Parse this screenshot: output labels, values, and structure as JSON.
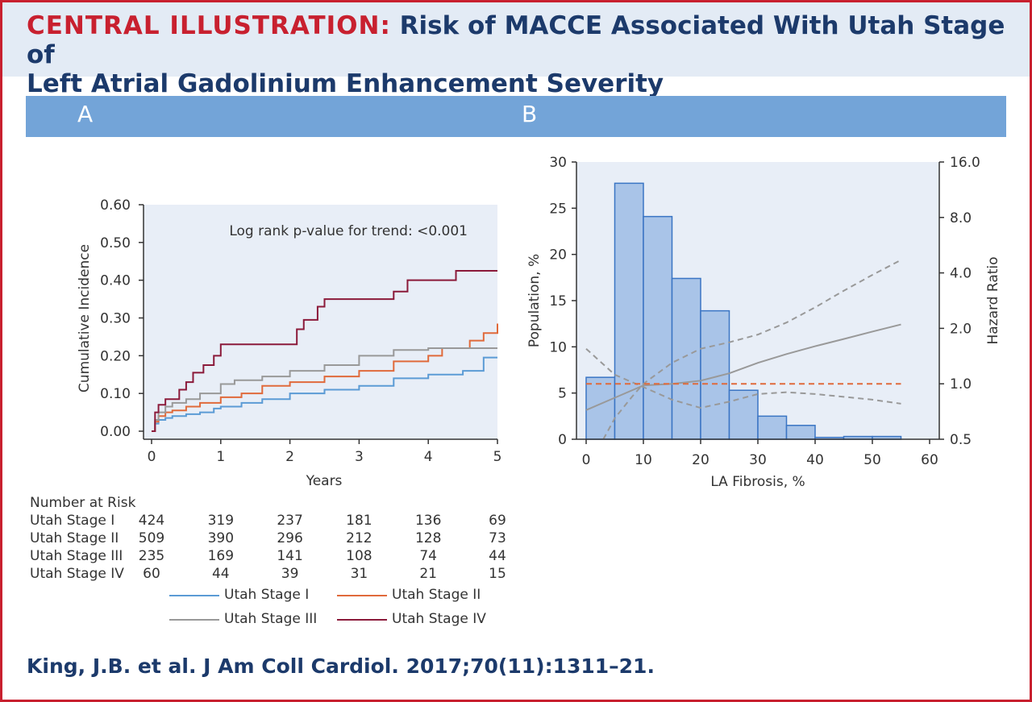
{
  "header": {
    "label": "CENTRAL ILLUSTRATION:",
    "title_line1": "Risk of MACCE Associated With Utah Stage of",
    "title_line2": "Left Atrial Gadolinium Enhancement Severity"
  },
  "panels": {
    "a_label": "A",
    "b_label": "B"
  },
  "citation": "King, J.B. et al. J Am Coll Cardiol. 2017;70(11):1311–21.",
  "chart_data": [
    {
      "type": "line",
      "panel": "A",
      "annotation": "Log rank p-value for trend: <0.001",
      "xlabel": "Years",
      "ylabel": "Cumulative Incidence",
      "xlim": [
        0,
        5
      ],
      "ylim": [
        0,
        0.6
      ],
      "x_ticks": [
        "0",
        "1",
        "2",
        "3",
        "4",
        "5"
      ],
      "y_ticks": [
        "0.00",
        "0.10",
        "0.20",
        "0.30",
        "0.40",
        "0.50",
        "0.60"
      ],
      "step": true,
      "series": [
        {
          "name": "Utah Stage I",
          "color": "#5b9bd5",
          "x": [
            0,
            0.05,
            0.1,
            0.2,
            0.3,
            0.5,
            0.7,
            0.9,
            1.0,
            1.3,
            1.6,
            2.0,
            2.5,
            3.0,
            3.5,
            4.0,
            4.5,
            4.8,
            5.0
          ],
          "y": [
            0,
            0.02,
            0.03,
            0.035,
            0.04,
            0.045,
            0.05,
            0.06,
            0.065,
            0.075,
            0.085,
            0.1,
            0.11,
            0.12,
            0.14,
            0.15,
            0.16,
            0.195,
            0.195
          ]
        },
        {
          "name": "Utah Stage II",
          "color": "#e06a3b",
          "x": [
            0,
            0.05,
            0.1,
            0.2,
            0.3,
            0.5,
            0.7,
            1.0,
            1.3,
            1.6,
            2.0,
            2.5,
            3.0,
            3.5,
            4.0,
            4.2,
            4.5,
            4.6,
            4.8,
            5.0
          ],
          "y": [
            0,
            0.025,
            0.04,
            0.05,
            0.055,
            0.065,
            0.075,
            0.09,
            0.1,
            0.12,
            0.13,
            0.145,
            0.16,
            0.185,
            0.2,
            0.22,
            0.22,
            0.24,
            0.26,
            0.285
          ]
        },
        {
          "name": "Utah Stage III",
          "color": "#999999",
          "x": [
            0,
            0.05,
            0.1,
            0.2,
            0.3,
            0.5,
            0.7,
            1.0,
            1.2,
            1.6,
            2.0,
            2.5,
            3.0,
            3.5,
            4.0,
            5.0
          ],
          "y": [
            0,
            0.03,
            0.05,
            0.065,
            0.075,
            0.085,
            0.1,
            0.125,
            0.135,
            0.145,
            0.16,
            0.175,
            0.2,
            0.215,
            0.22,
            0.22
          ]
        },
        {
          "name": "Utah Stage IV",
          "color": "#8b1a3a",
          "x": [
            0,
            0.05,
            0.1,
            0.2,
            0.4,
            0.5,
            0.6,
            0.75,
            0.9,
            1.0,
            1.5,
            2.1,
            2.2,
            2.4,
            2.5,
            3.0,
            3.5,
            3.7,
            4.0,
            4.4,
            5.0
          ],
          "y": [
            0,
            0.05,
            0.07,
            0.085,
            0.11,
            0.13,
            0.155,
            0.175,
            0.2,
            0.23,
            0.23,
            0.27,
            0.295,
            0.33,
            0.35,
            0.35,
            0.37,
            0.4,
            0.4,
            0.425,
            0.425
          ]
        }
      ],
      "number_at_risk": {
        "title": "Number at Risk",
        "rows": [
          {
            "label": "Utah Stage I",
            "values": [
              "424",
              "319",
              "237",
              "181",
              "136",
              "69"
            ]
          },
          {
            "label": "Utah Stage II",
            "values": [
              "509",
              "390",
              "296",
              "212",
              "128",
              "73"
            ]
          },
          {
            "label": "Utah Stage III",
            "values": [
              "235",
              "169",
              "141",
              "108",
              "74",
              "44"
            ]
          },
          {
            "label": "Utah Stage IV",
            "values": [
              "60",
              "44",
              "39",
              "31",
              "21",
              "15"
            ]
          }
        ]
      }
    },
    {
      "type": "bar",
      "panel": "B",
      "xlabel": "LA Fibrosis, %",
      "ylabel": "Population, %",
      "y2label": "Hazard Ratio",
      "xlim": [
        0,
        60
      ],
      "ylim": [
        0,
        30
      ],
      "y2_scale": "log",
      "y2lim": [
        0.5,
        16.0
      ],
      "x_ticks": [
        "0",
        "10",
        "20",
        "30",
        "40",
        "50",
        "60"
      ],
      "y_ticks": [
        "0",
        "5",
        "10",
        "15",
        "20",
        "25",
        "30"
      ],
      "y2_ticks": [
        "0.5",
        "1.0",
        "2.0",
        "4.0",
        "8.0",
        "16.0"
      ],
      "bar_color": "#a9c4e8",
      "bins": [
        {
          "x0": 0,
          "x1": 5,
          "value": 6.7
        },
        {
          "x0": 5,
          "x1": 10,
          "value": 27.7
        },
        {
          "x0": 10,
          "x1": 15,
          "value": 24.1
        },
        {
          "x0": 15,
          "x1": 20,
          "value": 17.4
        },
        {
          "x0": 20,
          "x1": 25,
          "value": 13.9
        },
        {
          "x0": 25,
          "x1": 30,
          "value": 5.3
        },
        {
          "x0": 30,
          "x1": 35,
          "value": 2.5
        },
        {
          "x0": 35,
          "x1": 40,
          "value": 1.5
        },
        {
          "x0": 40,
          "x1": 45,
          "value": 0.2
        },
        {
          "x0": 45,
          "x1": 50,
          "value": 0.3
        },
        {
          "x0": 50,
          "x1": 55,
          "value": 0.3
        }
      ],
      "hr_curves": [
        {
          "style": "solid",
          "color": "#999999",
          "x": [
            0,
            5,
            10,
            15,
            20,
            25,
            30,
            35,
            40,
            45,
            50,
            55
          ],
          "y": [
            0.72,
            0.84,
            0.98,
            1.0,
            1.04,
            1.14,
            1.3,
            1.45,
            1.6,
            1.75,
            1.92,
            2.1
          ]
        },
        {
          "style": "dashed",
          "color": "#999999",
          "x": [
            0,
            5,
            10,
            15,
            20,
            25,
            30,
            35,
            40,
            45,
            50,
            55
          ],
          "y": [
            1.55,
            1.12,
            0.96,
            0.82,
            0.74,
            0.8,
            0.88,
            0.9,
            0.88,
            0.85,
            0.82,
            0.78
          ]
        },
        {
          "style": "dashed",
          "color": "#999999",
          "x": [
            3,
            5,
            8,
            10,
            15,
            20,
            25,
            30,
            35,
            40,
            45,
            50,
            55
          ],
          "y": [
            0.5,
            0.65,
            0.85,
            1.0,
            1.3,
            1.55,
            1.68,
            1.85,
            2.15,
            2.6,
            3.2,
            3.9,
            4.7
          ]
        },
        {
          "style": "dashed",
          "color": "#e06a3b",
          "x": [
            0,
            55
          ],
          "y": [
            1.0,
            1.0
          ]
        }
      ]
    }
  ]
}
